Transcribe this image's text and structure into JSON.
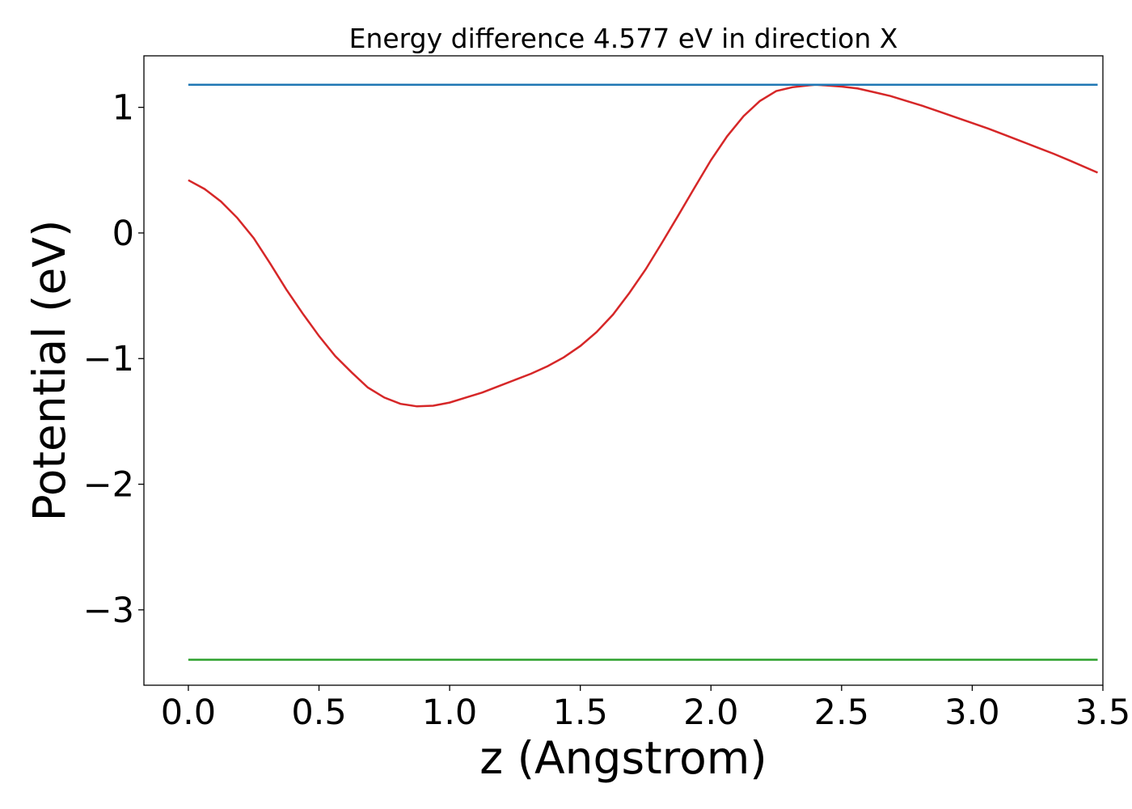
{
  "chart_data": {
    "type": "line",
    "title": "Energy difference 4.577 eV in direction X",
    "xlabel": "z (Angstrom)",
    "ylabel": "Potential (eV)",
    "xlim": [
      -0.17,
      3.5
    ],
    "ylim": [
      -3.6,
      1.41
    ],
    "xticks": [
      0.0,
      0.5,
      1.0,
      1.5,
      2.0,
      2.5,
      3.0,
      3.5
    ],
    "xtick_labels": [
      "0.0",
      "0.5",
      "1.0",
      "1.5",
      "2.0",
      "2.5",
      "3.0",
      "3.5"
    ],
    "yticks": [
      1,
      0,
      -1,
      -2,
      -3
    ],
    "ytick_labels": [
      "1",
      "0",
      "−1",
      "−2",
      "−3"
    ],
    "grid": false,
    "series": [
      {
        "color": "#d62728",
        "x": [
          0.0,
          0.062,
          0.125,
          0.187,
          0.25,
          0.312,
          0.375,
          0.437,
          0.5,
          0.562,
          0.625,
          0.687,
          0.75,
          0.812,
          0.875,
          0.937,
          1.0,
          1.062,
          1.125,
          1.187,
          1.25,
          1.312,
          1.375,
          1.437,
          1.5,
          1.562,
          1.625,
          1.687,
          1.75,
          1.812,
          1.875,
          1.937,
          2.0,
          2.062,
          2.125,
          2.187,
          2.25,
          2.312,
          2.375,
          2.4,
          2.437,
          2.5,
          2.562,
          2.625,
          2.687,
          2.75,
          2.812,
          2.875,
          2.937,
          3.0,
          3.062,
          3.125,
          3.187,
          3.25,
          3.312,
          3.375,
          3.48
        ],
        "y": [
          0.42,
          0.35,
          0.25,
          0.12,
          -0.04,
          -0.24,
          -0.45,
          -0.64,
          -0.82,
          -0.98,
          -1.11,
          -1.23,
          -1.31,
          -1.36,
          -1.38,
          -1.375,
          -1.35,
          -1.31,
          -1.27,
          -1.22,
          -1.17,
          -1.12,
          -1.06,
          -0.99,
          -0.9,
          -0.79,
          -0.65,
          -0.48,
          -0.29,
          -0.08,
          0.14,
          0.36,
          0.58,
          0.77,
          0.93,
          1.05,
          1.13,
          1.16,
          1.175,
          1.18,
          1.175,
          1.165,
          1.15,
          1.12,
          1.09,
          1.05,
          1.01,
          0.965,
          0.92,
          0.875,
          0.83,
          0.78,
          0.73,
          0.68,
          0.63,
          0.575,
          0.48
        ]
      },
      {
        "color": "#1f77b4",
        "x": [
          0.0,
          3.48
        ],
        "y": [
          1.18,
          1.18
        ]
      },
      {
        "color": "#2ca02c",
        "x": [
          0.0,
          3.48
        ],
        "y": [
          -3.397,
          -3.397
        ]
      }
    ]
  }
}
